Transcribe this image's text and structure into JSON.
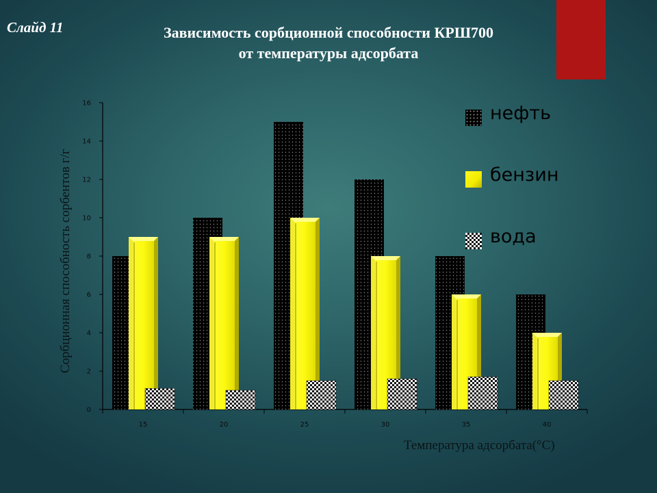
{
  "slide_label": "Слайд 11",
  "title_line1": "Зависимость сорбционной способности КРШ700",
  "title_line2": "от температуры адсорбата",
  "chart_data": {
    "type": "bar",
    "categories": [
      "15",
      "20",
      "25",
      "30",
      "35",
      "40"
    ],
    "series": [
      {
        "name": "нефть",
        "values": [
          8,
          10,
          15,
          12,
          8,
          6
        ],
        "color": "#000000"
      },
      {
        "name": "бензин",
        "values": [
          9,
          9,
          10,
          8,
          6,
          4
        ],
        "color": "#f5f000"
      },
      {
        "name": "вода",
        "values": [
          1.1,
          1.0,
          1.5,
          1.6,
          1.7,
          1.5
        ],
        "color": "#ffffff"
      }
    ],
    "yticks": [
      "0",
      "2",
      "4",
      "6",
      "8",
      "10",
      "12",
      "14",
      "16"
    ],
    "ylim": [
      0,
      16
    ],
    "xlabel": "Температура адсорбата(°С)",
    "ylabel": "Сорбционная способность сорбентов г/г",
    "legend_position": "right"
  }
}
